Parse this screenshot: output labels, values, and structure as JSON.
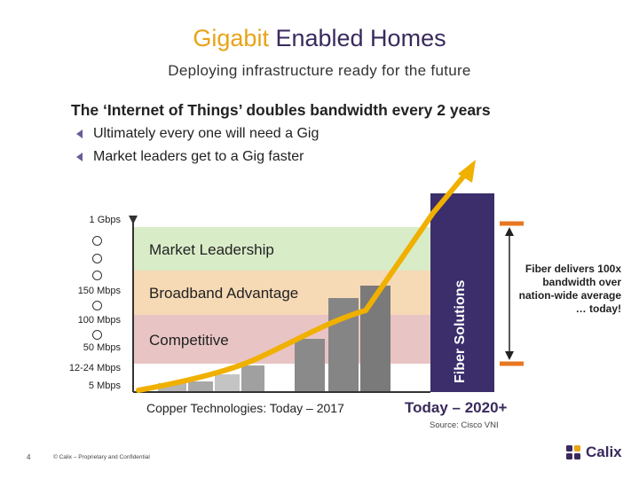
{
  "title": {
    "accent": "Gigabit",
    "rest": "Enabled Homes"
  },
  "subtitle": "Deploying infrastructure ready for the future",
  "heading": "The ‘Internet of Things’ doubles bandwidth every 2 years",
  "bullets": [
    "Ultimately every one will need a Gig",
    "Market leaders get to a Gig faster"
  ],
  "y_axis_labels": {
    "gbps1": "1 Gbps",
    "mbps150": "150 Mbps",
    "mbps100": "100 Mbps",
    "mbps50": "50 Mbps",
    "mbps12_24": "12-24 Mbps",
    "mbps5": "5 Mbps"
  },
  "bands": {
    "market": "Market Leadership",
    "broadband": "Broadband Advantage",
    "competitive": "Competitive"
  },
  "fiber_column_label": "Fiber Solutions",
  "fiber_note": "Fiber delivers 100x bandwidth over nation-wide average … today!",
  "x_labels": {
    "copper": "Copper Technologies: Today – 2017",
    "today": "Today – 2020+"
  },
  "source": "Source: Cisco VNI",
  "footer": {
    "page_number": "4",
    "copyright": "© Calix – Proprietary and Confidential",
    "logo_text": "Calix"
  },
  "colors": {
    "band_market": "#d9ecc8",
    "band_broadband": "#f6d9b5",
    "band_competitive": "#e8c4c4",
    "fiber_column": "#3b2e6b",
    "curve": "#f0b000",
    "bars_copper": "#b5b5b5",
    "bars_today": "#8a8a8a"
  },
  "chart_data": {
    "type": "bar",
    "bars": [
      {
        "group": "copper",
        "level": "5 Mbps"
      },
      {
        "group": "copper",
        "level": "12-24 Mbps"
      },
      {
        "group": "copper",
        "level": "12-24 Mbps"
      },
      {
        "group": "copper",
        "level": "50 Mbps"
      },
      {
        "group": "today",
        "level": "100 Mbps"
      },
      {
        "group": "today",
        "level": "150 Mbps"
      },
      {
        "group": "today",
        "level": "150 Mbps"
      }
    ],
    "fiber_level": "1 Gbps",
    "curve": "growth curve from 5 Mbps rising through Competitive and Broadband Advantage to 1 Gbps",
    "annotations": [
      "Fiber delivers 100x bandwidth over nation-wide average … today!"
    ]
  }
}
